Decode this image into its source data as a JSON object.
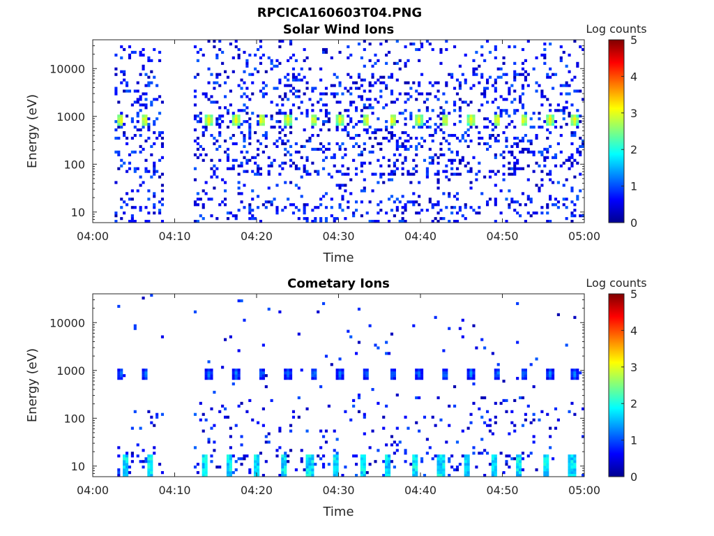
{
  "figure_title": "RPCICA160603T04.PNG",
  "chart_data": [
    {
      "type": "heatmap",
      "title": "Solar Wind Ions",
      "xlabel": "Time",
      "ylabel": "Energy (eV)",
      "xlim": [
        "04:00",
        "05:00"
      ],
      "xticks": [
        "04:00",
        "04:10",
        "04:20",
        "04:30",
        "04:40",
        "04:50",
        "05:00"
      ],
      "yscale": "log",
      "ylim": [
        6,
        40000
      ],
      "yticks": [
        {
          "value": 10,
          "label": "10"
        },
        {
          "value": 100,
          "label": "100"
        },
        {
          "value": 1000,
          "label": "1000"
        },
        {
          "value": 10000,
          "label": "10000"
        }
      ],
      "colorbar": {
        "label": "Log counts",
        "range": [
          0,
          5
        ],
        "ticks": [
          "0",
          "1",
          "2",
          "3",
          "4",
          "5"
        ],
        "colormap": "jet"
      },
      "data_gaps_minutes": [
        [
          0,
          2.5
        ],
        [
          8.8,
          12.3
        ]
      ],
      "peak_energy_eV": 850,
      "peak_times_minutes": [
        3.4,
        6.4,
        14.2,
        17.5,
        20.6,
        23.8,
        27.0,
        30.2,
        33.4,
        36.6,
        39.8,
        43.0,
        46.2,
        49.4,
        52.6,
        55.8,
        58.8
      ],
      "peak_log_counts": 3.1,
      "background_log_counts_range": [
        0.2,
        1.2
      ]
    },
    {
      "type": "heatmap",
      "title": "Cometary Ions",
      "xlabel": "Time",
      "ylabel": "Energy (eV)",
      "xlim": [
        "04:00",
        "05:00"
      ],
      "xticks": [
        "04:00",
        "04:10",
        "04:20",
        "04:30",
        "04:40",
        "04:50",
        "05:00"
      ],
      "yscale": "log",
      "ylim": [
        6,
        40000
      ],
      "yticks": [
        {
          "value": 10,
          "label": "10"
        },
        {
          "value": 100,
          "label": "100"
        },
        {
          "value": 1000,
          "label": "1000"
        },
        {
          "value": 10000,
          "label": "10000"
        }
      ],
      "colorbar": {
        "label": "Log counts",
        "range": [
          0,
          5
        ],
        "ticks": [
          "0",
          "1",
          "2",
          "3",
          "4",
          "5"
        ],
        "colormap": "jet"
      },
      "data_gaps_minutes": [
        [
          0,
          2.5
        ],
        [
          8.8,
          12.3
        ]
      ],
      "peak_energy_eV": 850,
      "peak_times_minutes": [
        3.4,
        6.4,
        14.2,
        17.5,
        20.6,
        23.8,
        27.0,
        30.2,
        33.4,
        36.6,
        39.8,
        43.0,
        46.2,
        49.4,
        52.6,
        55.8,
        58.8
      ],
      "peak_log_counts": 1.3,
      "low_energy_band_eV": [
        6,
        18
      ],
      "low_energy_band_times_minutes": [
        4.0,
        7.0,
        13.6,
        16.8,
        20.0,
        23.2,
        26.5,
        29.7,
        32.9,
        36.1,
        39.3,
        42.5,
        45.7,
        48.9,
        52.1,
        55.3,
        58.5
      ],
      "low_energy_band_log_counts": 2.0
    }
  ]
}
